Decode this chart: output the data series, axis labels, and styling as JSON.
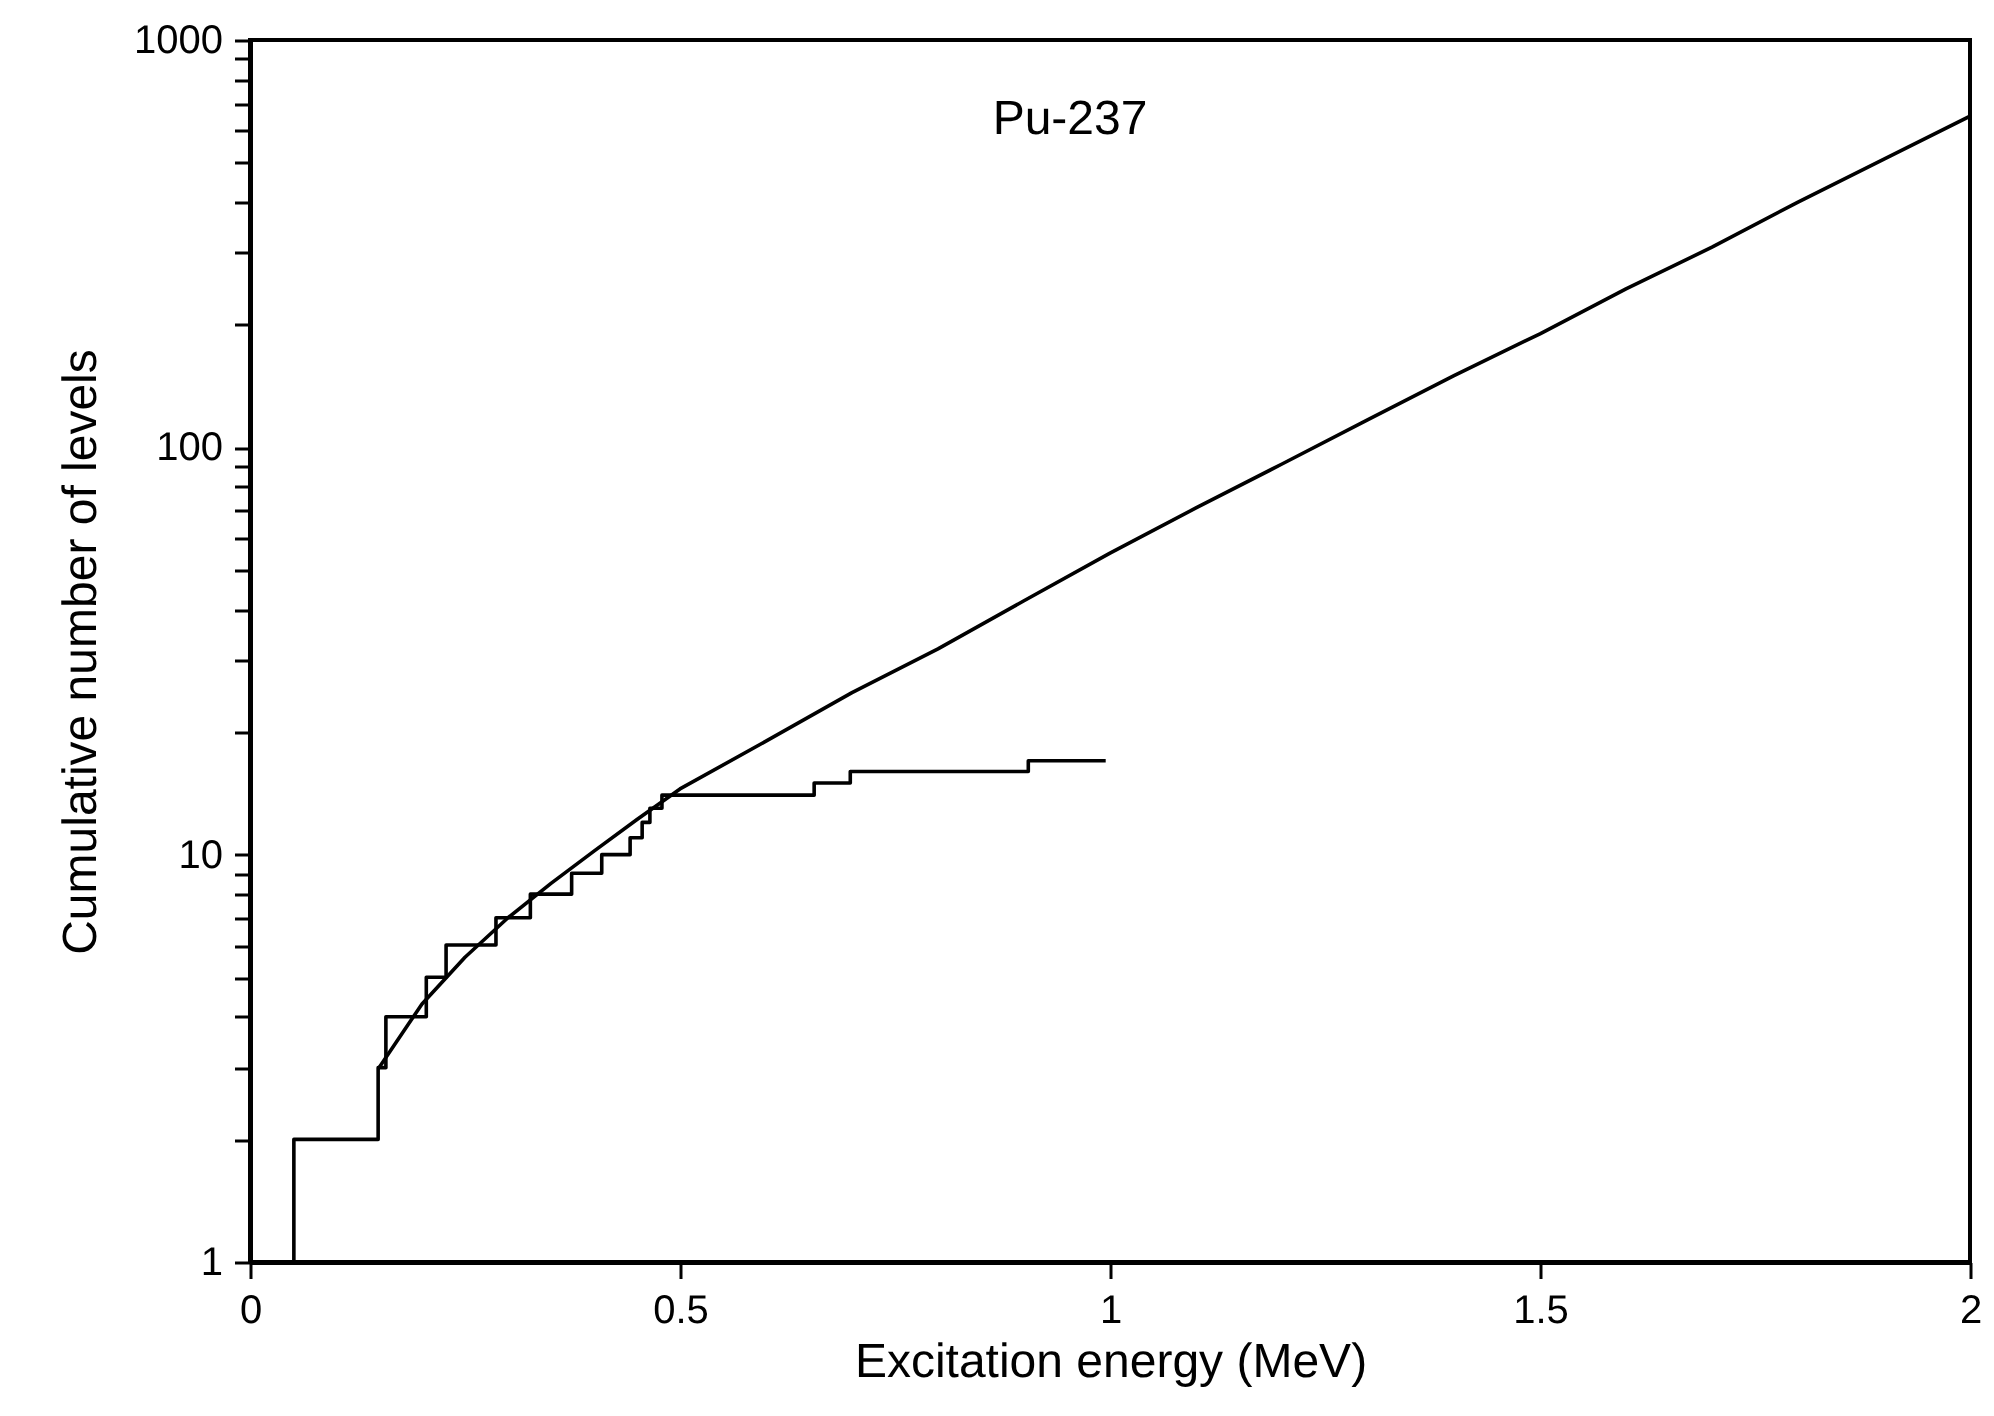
{
  "chart_data": {
    "type": "line",
    "title": "Pu-237",
    "xlabel": "Excitation energy (MeV)",
    "ylabel": "Cumulative number of levels",
    "xlim": [
      0,
      2
    ],
    "xticks": [
      0,
      0.5,
      1,
      1.5,
      2
    ],
    "ylim": [
      1,
      1000
    ],
    "log": true,
    "yticks": [
      1,
      {
        "value": 2,
        "label": null
      },
      {
        "value": 3,
        "label": null
      },
      {
        "value": 4,
        "label": null
      },
      {
        "value": 5,
        "label": null
      },
      {
        "value": 6,
        "label": null
      },
      {
        "value": 7,
        "label": null
      },
      {
        "value": 8,
        "label": null
      },
      {
        "value": 9,
        "label": null
      },
      10,
      {
        "value": 20,
        "label": null
      },
      {
        "value": 30,
        "label": null
      },
      {
        "value": 40,
        "label": null
      },
      {
        "value": 50,
        "label": null
      },
      {
        "value": 60,
        "label": null
      },
      {
        "value": 70,
        "label": null
      },
      {
        "value": 80,
        "label": null
      },
      {
        "value": 90,
        "label": null
      },
      100,
      {
        "value": 200,
        "label": null
      },
      {
        "value": 300,
        "label": null
      },
      {
        "value": 400,
        "label": null
      },
      {
        "value": 500,
        "label": null
      },
      {
        "value": 600,
        "label": null
      },
      {
        "value": 700,
        "label": null
      },
      {
        "value": 800,
        "label": null
      },
      {
        "value": 900,
        "label": null
      },
      1000
    ],
    "grid": false,
    "series": [
      {
        "type": "step",
        "color": "#000000",
        "x": [
          0,
          0.051,
          0.149,
          0.158,
          0.205,
          0.228,
          0.286,
          0.326,
          0.374,
          0.409,
          0.442,
          0.456,
          0.465,
          0.479,
          0.656,
          0.698,
          0.905,
          0.995
        ],
        "values": [
          1,
          2,
          3,
          4,
          5,
          6,
          7,
          8,
          9,
          10,
          11,
          12,
          13,
          14,
          15,
          16,
          17,
          17
        ]
      },
      {
        "type": "line",
        "color": "#000000",
        "x": [
          0.15,
          0.2,
          0.25,
          0.3,
          0.35,
          0.4,
          0.45,
          0.5,
          0.6,
          0.7,
          0.8,
          0.9,
          1.0,
          1.1,
          1.2,
          1.3,
          1.4,
          1.5,
          1.6,
          1.7,
          1.8,
          1.9,
          2.0
        ],
        "values": [
          3.0,
          4.3,
          5.6,
          7.0,
          8.5,
          10.2,
          12.2,
          14.5,
          19,
          25,
          32,
          42,
          55,
          71,
          91,
          117,
          150,
          190,
          245,
          310,
          400,
          510,
          650
        ]
      }
    ]
  }
}
